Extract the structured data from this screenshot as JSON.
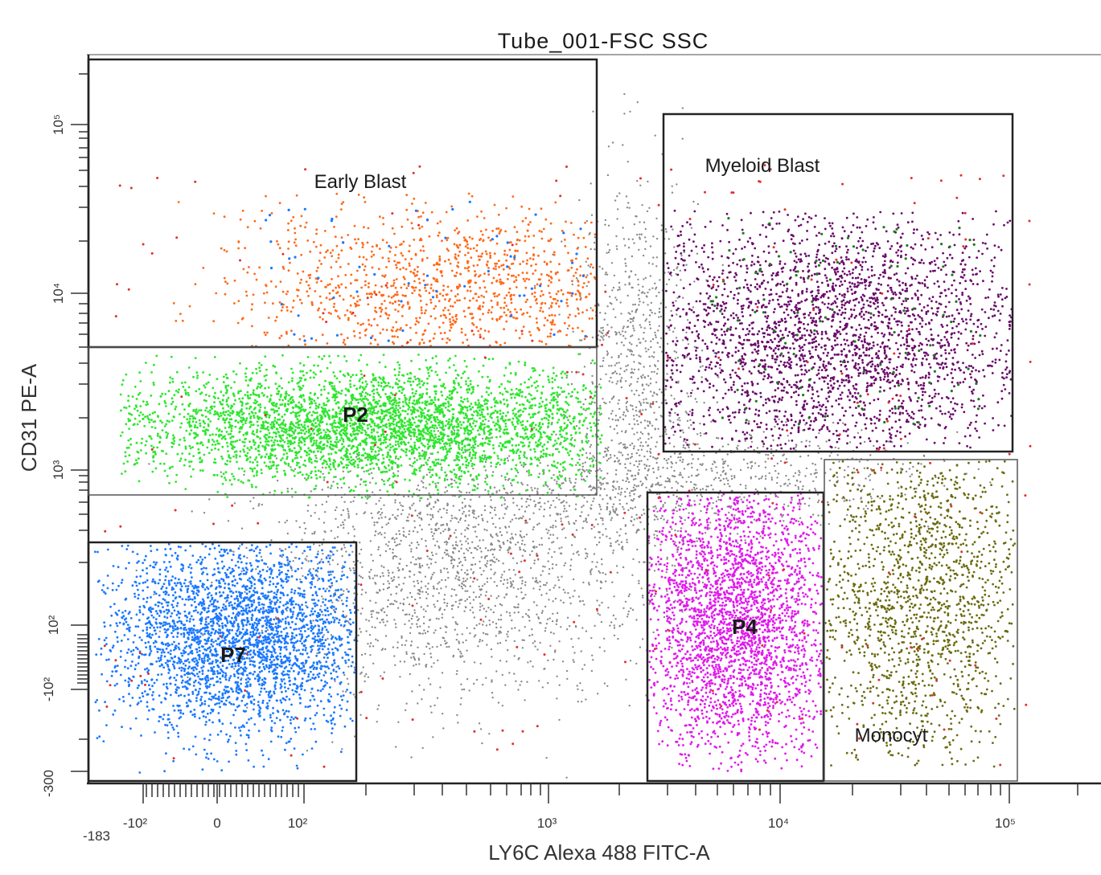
{
  "chart_data": {
    "type": "scatter",
    "title": "Tube_001-FSC SSC",
    "xlabel": "LY6C Alexa 488 FITC-A",
    "ylabel": "CD31 PE-A",
    "x_scale": "biexponential",
    "y_scale": "biexponential",
    "x_tick_labels": [
      "-183",
      "-10²",
      "0",
      "10²",
      "10³",
      "10⁴",
      "10⁵"
    ],
    "y_tick_labels": [
      "-300",
      "-10²",
      "10²",
      "10³",
      "10⁴",
      "10⁵"
    ],
    "gates": [
      {
        "name": "Early Blast",
        "x_range": [
          -183,
          1700
        ],
        "y_range": [
          4800,
          200000
        ],
        "color": "#ff6a1a"
      },
      {
        "name": "P2",
        "x_range": [
          -183,
          1700
        ],
        "y_range": [
          780,
          4800
        ],
        "color": "#2ee62e"
      },
      {
        "name": "P7",
        "x_range": [
          -183,
          150
        ],
        "y_range": [
          -300,
          450
        ],
        "color": "#1a78ff"
      },
      {
        "name": "Myeloid Blast",
        "x_range": [
          3000,
          130000
        ],
        "y_range": [
          1300,
          120000
        ],
        "color": "#6a0a6a"
      },
      {
        "name": "P4",
        "x_range": [
          2600,
          15000
        ],
        "y_range": [
          -300,
          850
        ],
        "color": "#e01aec"
      },
      {
        "name": "Monocyt",
        "x_range": [
          15000,
          150000
        ],
        "y_range": [
          -300,
          1150
        ],
        "color": "#6b6b10"
      }
    ],
    "ungated_color": "#8a8a8a",
    "outlier_color": "#e03030",
    "grid": false,
    "legend": "none"
  }
}
